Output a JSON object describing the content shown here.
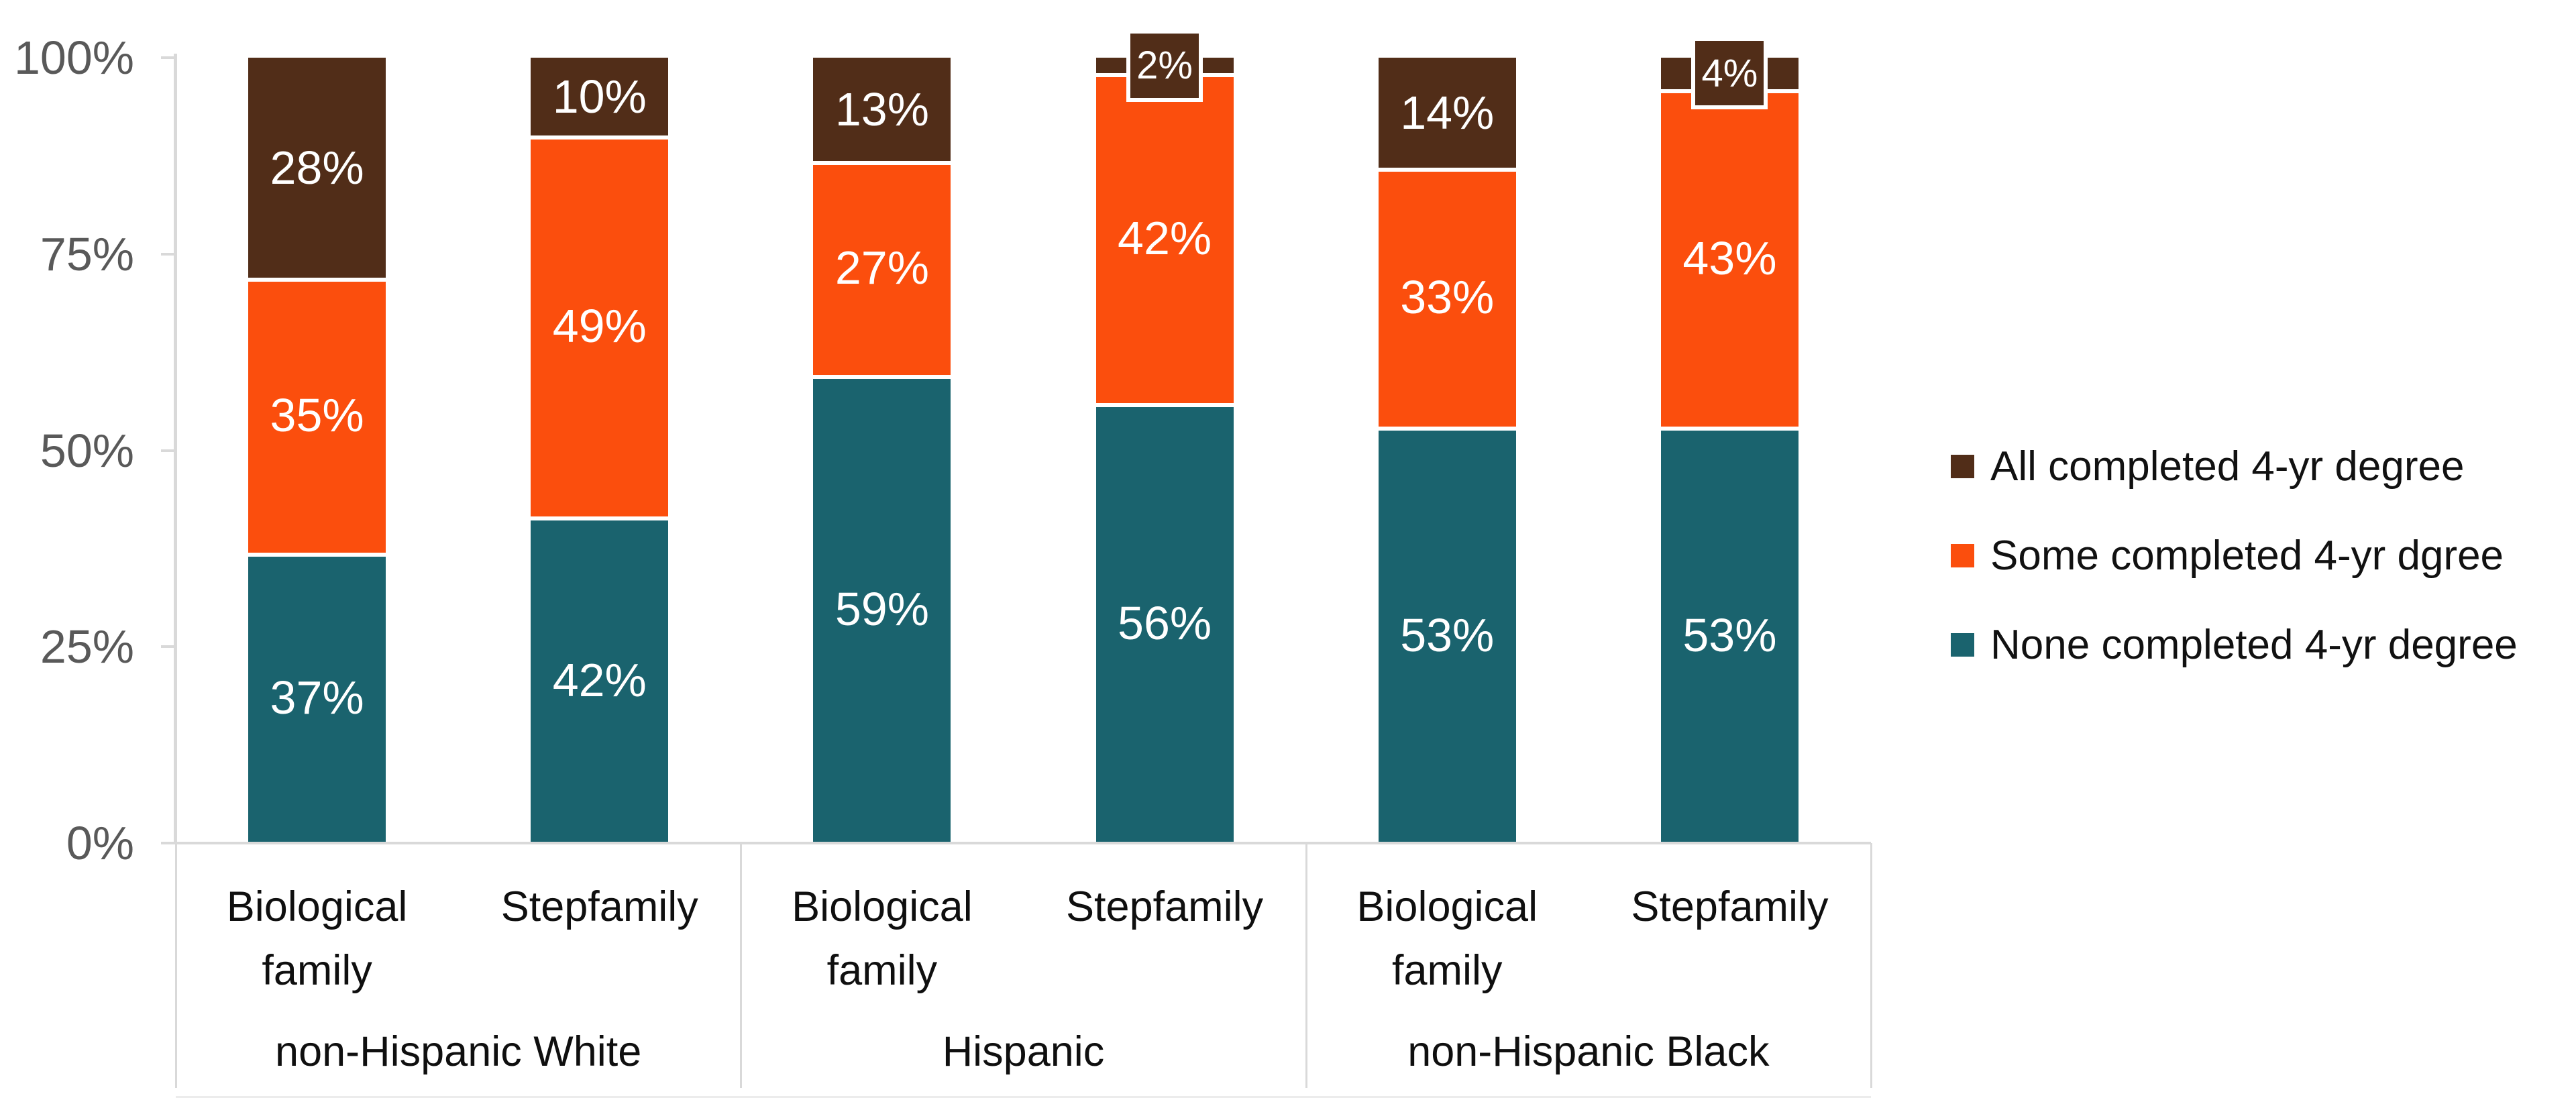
{
  "chart_data": {
    "type": "bar",
    "stacked": true,
    "title": "",
    "y_axis": {
      "min": 0,
      "max": 100,
      "tick_labels": [
        "100%",
        "75%",
        "50%",
        "25%",
        "0%"
      ],
      "tick_text_color": "#595959"
    },
    "series": [
      {
        "key": "all",
        "name": "All completed 4-yr degree",
        "color": "#512d18"
      },
      {
        "key": "some",
        "name": "Some completed 4-yr dgree",
        "color": "#fb4e0d"
      },
      {
        "key": "none",
        "name": "None completed 4-yr degree",
        "color": "#1a636e"
      }
    ],
    "stack_order_bottom_to_top": [
      "none",
      "some",
      "all"
    ],
    "data_label_suffix": "%",
    "groups": [
      {
        "label": "non-Hispanic White",
        "bars": [
          {
            "category_lines": [
              "Biological",
              "family"
            ],
            "values": {
              "none": 37,
              "some": 35,
              "all": 28
            }
          },
          {
            "category_lines": [
              "Stepfamily"
            ],
            "values": {
              "none": 42,
              "some": 49,
              "all": 10
            }
          }
        ]
      },
      {
        "label": "Hispanic",
        "bars": [
          {
            "category_lines": [
              "Biological",
              "family"
            ],
            "values": {
              "none": 59,
              "some": 27,
              "all": 13
            }
          },
          {
            "category_lines": [
              "Stepfamily"
            ],
            "values": {
              "none": 56,
              "some": 42,
              "all": 2
            }
          }
        ]
      },
      {
        "label": "non-Hispanic Black",
        "bars": [
          {
            "category_lines": [
              "Biological",
              "family"
            ],
            "values": {
              "none": 53,
              "some": 33,
              "all": 14
            }
          },
          {
            "category_lines": [
              "Stepfamily"
            ],
            "values": {
              "none": 53,
              "some": 43,
              "all": 4
            }
          }
        ]
      }
    ],
    "legend_position": "right",
    "grid": false,
    "colors": {
      "axis_line": "#d9d9d9",
      "data_label_text": "#ffffff",
      "category_text": "#0f0f0f"
    }
  }
}
